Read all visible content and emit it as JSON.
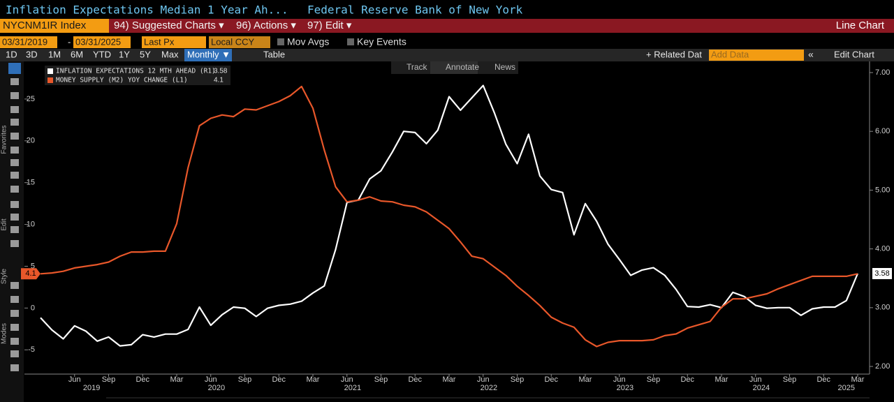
{
  "header": {
    "title": "Inflation Expectations Median 1 Year Ah...",
    "source": "Federal Reserve Bank of New York"
  },
  "menu": {
    "ticker": "NYCNM1IR Index",
    "items": [
      "94) Suggested Charts ▾",
      "96) Actions ▾",
      "97) Edit ▾"
    ],
    "chart_kind": "Line Chart"
  },
  "controls": {
    "start": "03/31/2019",
    "separator": "-",
    "end": "03/31/2025",
    "price": "Last Px",
    "currency": "Local CCY",
    "mov_avgs": "Mov Avgs",
    "key_events": "Key Events"
  },
  "periods": [
    "1D",
    "3D",
    "1M",
    "6M",
    "YTD",
    "1Y",
    "5Y",
    "Max"
  ],
  "frequency": "Monthly ▼",
  "table": "Table",
  "related": "+ Related Dat",
  "add_data": "Add Data",
  "collapse": "«",
  "edit_chart": "Edit Chart",
  "chart_tools": [
    "Track",
    "Annotate",
    "News"
  ],
  "sidebar": [
    "Favorites",
    "Edit",
    "Style",
    "Modes"
  ],
  "chart_data": {
    "type": "line",
    "x": [
      "2019-03",
      "2019-04",
      "2019-05",
      "2019-06",
      "2019-07",
      "2019-08",
      "2019-09",
      "2019-10",
      "2019-11",
      "2019-12",
      "2020-01",
      "2020-02",
      "2020-03",
      "2020-04",
      "2020-05",
      "2020-06",
      "2020-07",
      "2020-08",
      "2020-09",
      "2020-10",
      "2020-11",
      "2020-12",
      "2021-01",
      "2021-02",
      "2021-03",
      "2021-04",
      "2021-05",
      "2021-06",
      "2021-07",
      "2021-08",
      "2021-09",
      "2021-10",
      "2021-11",
      "2021-12",
      "2022-01",
      "2022-02",
      "2022-03",
      "2022-04",
      "2022-05",
      "2022-06",
      "2022-07",
      "2022-08",
      "2022-09",
      "2022-10",
      "2022-11",
      "2022-12",
      "2023-01",
      "2023-02",
      "2023-03",
      "2023-04",
      "2023-05",
      "2023-06",
      "2023-07",
      "2023-08",
      "2023-09",
      "2023-10",
      "2023-11",
      "2023-12",
      "2024-01",
      "2024-02",
      "2024-03",
      "2024-04",
      "2024-05",
      "2024-06",
      "2024-07",
      "2024-08",
      "2024-09",
      "2024-10",
      "2024-11",
      "2024-12",
      "2025-01",
      "2025-02",
      "2025-03"
    ],
    "series": [
      {
        "name": "INFLATION EXPECTATIONS 12 MTH AHEAD (R1)",
        "color": "#ffffff",
        "axis": "y2",
        "values": [
          2.83,
          2.62,
          2.47,
          2.69,
          2.6,
          2.43,
          2.5,
          2.35,
          2.37,
          2.54,
          2.5,
          2.55,
          2.55,
          2.63,
          3.01,
          2.7,
          2.88,
          3.01,
          2.99,
          2.85,
          2.99,
          3.04,
          3.06,
          3.11,
          3.25,
          3.37,
          3.99,
          4.79,
          4.83,
          5.19,
          5.33,
          5.65,
          6.0,
          5.98,
          5.79,
          6.02,
          6.59,
          6.36,
          6.57,
          6.78,
          6.31,
          5.78,
          5.45,
          5.95,
          5.24,
          5.01,
          4.96,
          4.24,
          4.77,
          4.47,
          4.08,
          3.82,
          3.55,
          3.64,
          3.68,
          3.55,
          3.31,
          3.02,
          3.01,
          3.05,
          3.0,
          3.26,
          3.19,
          3.04,
          2.99,
          3.0,
          3.0,
          2.87,
          2.98,
          3.01,
          3.01,
          3.12,
          3.58
        ]
      },
      {
        "name": "MONEY SUPPLY (M2) YOY CHANGE (L1)",
        "color": "#e8572a",
        "values": [
          4.1,
          4.2,
          4.4,
          4.8,
          5.0,
          5.2,
          5.5,
          6.2,
          6.7,
          6.7,
          6.8,
          6.8,
          10.1,
          16.8,
          21.8,
          22.7,
          23.1,
          22.9,
          23.8,
          23.7,
          24.2,
          24.7,
          25.4,
          26.5,
          23.9,
          18.9,
          14.5,
          12.7,
          12.9,
          13.3,
          12.8,
          12.7,
          12.3,
          12.1,
          11.5,
          10.5,
          9.5,
          7.9,
          6.2,
          5.9,
          4.9,
          3.9,
          2.6,
          1.5,
          0.3,
          -1.1,
          -1.8,
          -2.3,
          -3.8,
          -4.6,
          -4.1,
          -3.9,
          -3.9,
          -3.9,
          -3.8,
          -3.3,
          -3.1,
          -2.4,
          -2.0,
          -1.6,
          0.1,
          1.1,
          1.1,
          1.4,
          1.7,
          2.3,
          2.8,
          3.3,
          3.8,
          3.8,
          3.8,
          3.8,
          4.1
        ]
      }
    ],
    "ylim": [
      -7.9,
      29.5
    ],
    "yticks": [
      -5,
      0,
      5,
      10,
      15,
      20,
      25
    ],
    "y2lim": [
      1.87,
      7.19
    ],
    "y2ticks": [
      {
        "value": 2,
        "label": "2.00"
      },
      {
        "value": 3,
        "label": "3.00"
      },
      {
        "value": 4,
        "label": "4.00"
      },
      {
        "value": 5,
        "label": "5.00"
      },
      {
        "value": 6,
        "label": "6.00"
      },
      {
        "value": 7,
        "label": "7.00"
      }
    ],
    "xticks": [
      {
        "value": "2019-06",
        "label": "Jun"
      },
      {
        "value": "2019-09",
        "label": "Sep"
      },
      {
        "value": "2019-12",
        "label": "Dec"
      },
      {
        "value": "2020-03",
        "label": "Mar"
      },
      {
        "value": "2020-06",
        "label": "Jun"
      },
      {
        "value": "2020-09",
        "label": "Sep"
      },
      {
        "value": "2020-12",
        "label": "Dec"
      },
      {
        "value": "2021-03",
        "label": "Mar"
      },
      {
        "value": "2021-06",
        "label": "Jun"
      },
      {
        "value": "2021-09",
        "label": "Sep"
      },
      {
        "value": "2021-12",
        "label": "Dec"
      },
      {
        "value": "2022-03",
        "label": "Mar"
      },
      {
        "value": "2022-06",
        "label": "Jun"
      },
      {
        "value": "2022-09",
        "label": "Sep"
      },
      {
        "value": "2022-12",
        "label": "Dec"
      },
      {
        "value": "2023-03",
        "label": "Mar"
      },
      {
        "value": "2023-06",
        "label": "Jun"
      },
      {
        "value": "2023-09",
        "label": "Sep"
      },
      {
        "value": "2023-12",
        "label": "Dec"
      },
      {
        "value": "2024-03",
        "label": "Mar"
      },
      {
        "value": "2024-06",
        "label": "Jun"
      },
      {
        "value": "2024-09",
        "label": "Sep"
      },
      {
        "value": "2024-12",
        "label": "Dec"
      },
      {
        "value": "2025-03",
        "label": "Mar"
      }
    ],
    "years": [
      "2019",
      "2020",
      "2021",
      "2022",
      "2023",
      "2024",
      "2025"
    ]
  }
}
